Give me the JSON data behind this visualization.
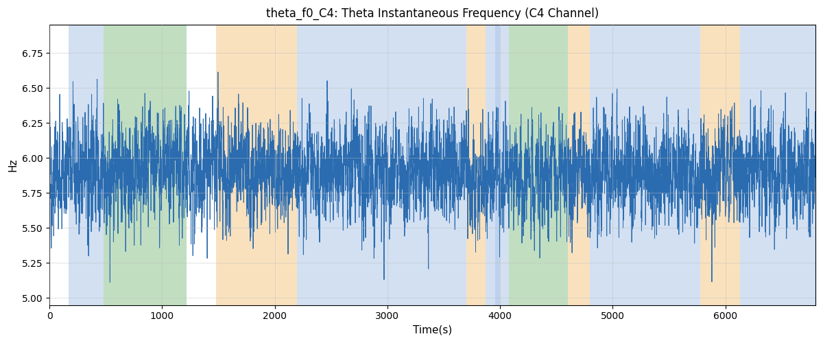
{
  "title": "theta_f0_C4: Theta Instantaneous Frequency (C4 Channel)",
  "xlabel": "Time(s)",
  "ylabel": "Hz",
  "ylim": [
    4.95,
    6.95
  ],
  "xlim": [
    0,
    6800
  ],
  "figsize": [
    12.0,
    5.0
  ],
  "dpi": 100,
  "line_color": "#2b6cb0",
  "line_width": 0.7,
  "background_regions": [
    {
      "xmin": 170,
      "xmax": 480,
      "color": "#adc8e8",
      "alpha": 0.55
    },
    {
      "xmin": 480,
      "xmax": 1220,
      "color": "#8ec48e",
      "alpha": 0.55
    },
    {
      "xmin": 1480,
      "xmax": 2200,
      "color": "#f5c98a",
      "alpha": 0.55
    },
    {
      "xmin": 2200,
      "xmax": 2700,
      "color": "#adc8e8",
      "alpha": 0.55
    },
    {
      "xmin": 2700,
      "xmax": 3050,
      "color": "#f5c98a",
      "alpha": 0.0
    },
    {
      "xmin": 2700,
      "xmax": 3700,
      "color": "#adc8e8",
      "alpha": 0.55
    },
    {
      "xmin": 3700,
      "xmax": 3870,
      "color": "#f5c98a",
      "alpha": 0.55
    },
    {
      "xmin": 3870,
      "xmax": 4000,
      "color": "#adc8e8",
      "alpha": 0.55
    },
    {
      "xmin": 3960,
      "xmax": 4080,
      "color": "#adc8e8",
      "alpha": 0.55
    },
    {
      "xmin": 4080,
      "xmax": 4600,
      "color": "#8ec48e",
      "alpha": 0.55
    },
    {
      "xmin": 4600,
      "xmax": 4800,
      "color": "#f5c98a",
      "alpha": 0.55
    },
    {
      "xmin": 4800,
      "xmax": 5780,
      "color": "#adc8e8",
      "alpha": 0.55
    },
    {
      "xmin": 5780,
      "xmax": 6130,
      "color": "#f5c98a",
      "alpha": 0.55
    },
    {
      "xmin": 6130,
      "xmax": 6800,
      "color": "#adc8e8",
      "alpha": 0.55
    }
  ],
  "seed": 42,
  "num_points": 6800,
  "base_freq": 5.9,
  "yticks": [
    5.0,
    5.25,
    5.5,
    5.75,
    6.0,
    6.25,
    6.5,
    6.75
  ],
  "xticks": [
    0,
    1000,
    2000,
    3000,
    4000,
    5000,
    6000
  ],
  "grid_color": "#bbbbbb",
  "grid_alpha": 0.6
}
